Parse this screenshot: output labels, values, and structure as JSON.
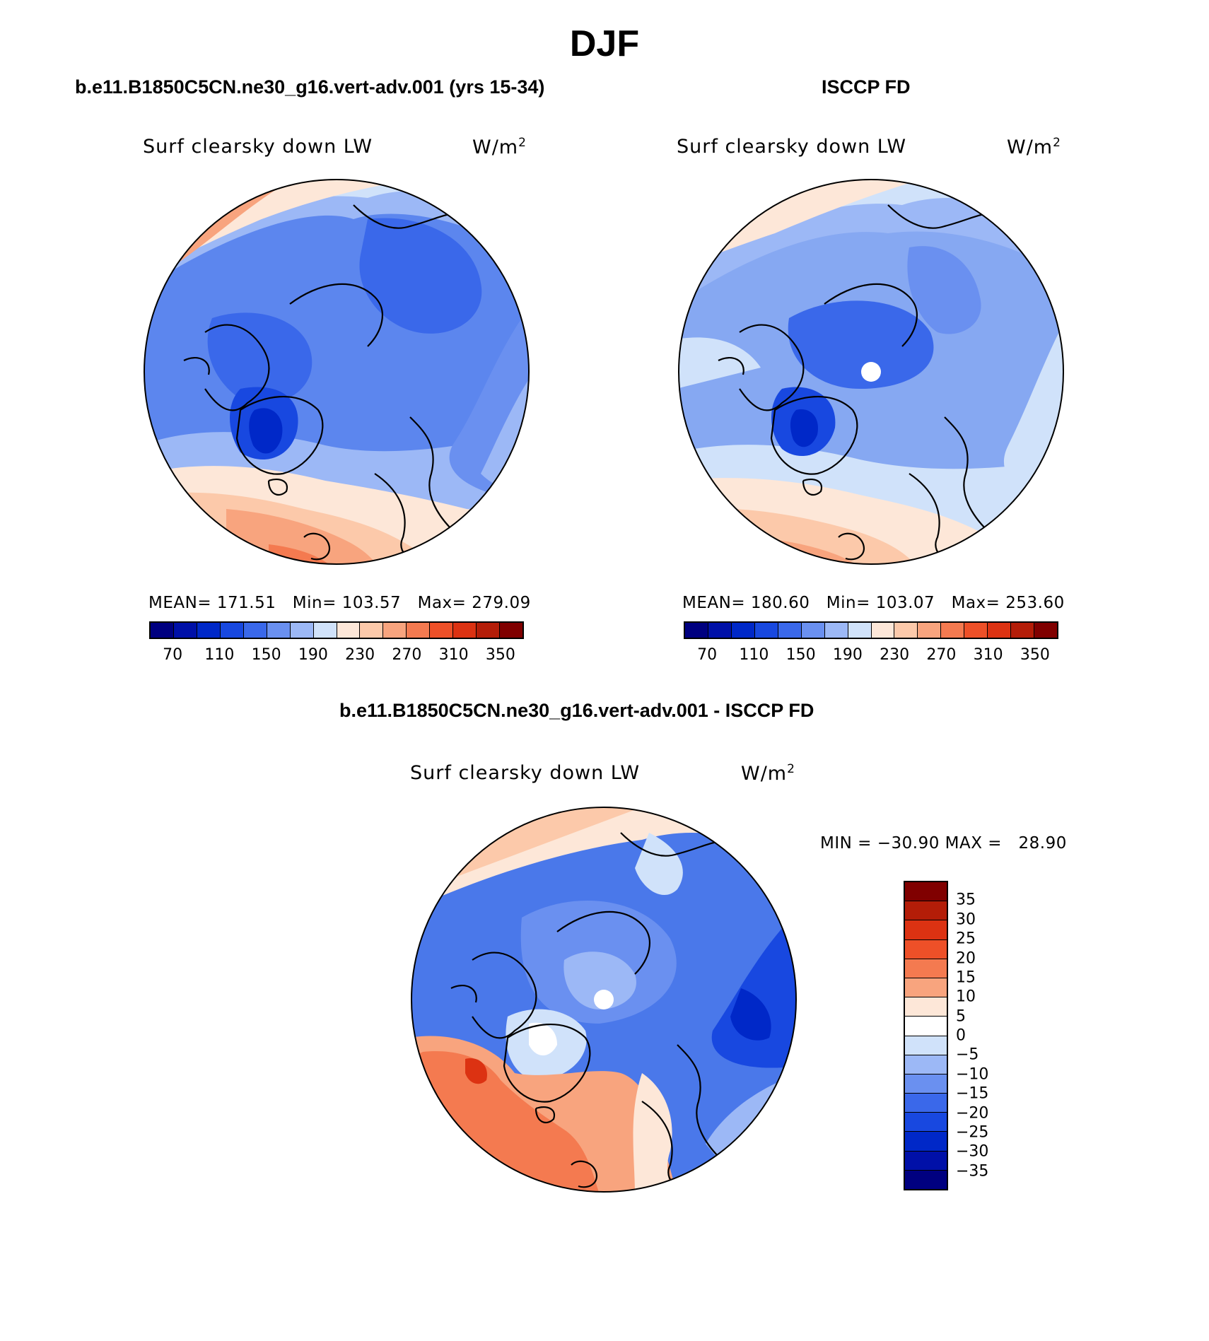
{
  "figure": {
    "title": "DJF"
  },
  "panels": [
    {
      "id": "model",
      "title": "b.e11.B1850C5CN.ne30_g16.vert-adv.001 (yrs 15-34)",
      "variable": "Surf clearsky down LW",
      "units": "W/m",
      "units_exp": "2",
      "stats": "MEAN= 171.51   Min= 103.57   Max= 279.09",
      "mean": 171.51,
      "min": 103.57,
      "max": 279.09
    },
    {
      "id": "obs",
      "title": "ISCCP FD",
      "variable": "Surf clearsky down LW",
      "units": "W/m",
      "units_exp": "2",
      "stats": "MEAN= 180.60   Min= 103.07   Max= 253.60",
      "mean": 180.6,
      "min": 103.07,
      "max": 253.6
    },
    {
      "id": "diff",
      "title": "b.e11.B1850C5CN.ne30_g16.vert-adv.001 - ISCCP FD",
      "variable": "Surf clearsky down LW",
      "units": "W/m",
      "units_exp": "2",
      "stats": "MIN = −30.90 MAX =   28.90",
      "min": -30.9,
      "max": 28.9
    }
  ],
  "colorbar_abs": {
    "colors": [
      "#000080",
      "#0010a8",
      "#0028c8",
      "#1848e0",
      "#3a68ea",
      "#6a90f0",
      "#9cb8f6",
      "#d0e2fa",
      "#fde7d8",
      "#fcc9aa",
      "#f8a47e",
      "#f47a50",
      "#ee5028",
      "#dc3212",
      "#b41d08",
      "#800000"
    ],
    "ticks": [
      "70",
      "110",
      "150",
      "190",
      "230",
      "270",
      "310",
      "350"
    ]
  },
  "colorbar_diff": {
    "colors": [
      "#800000",
      "#b41d08",
      "#dc3212",
      "#ee5028",
      "#f47a50",
      "#f8a47e",
      "#fde7d8",
      "#ffffff",
      "#d0e2fa",
      "#9cb8f6",
      "#6a90f0",
      "#3a68ea",
      "#1848e0",
      "#0028c8",
      "#0010a8",
      "#000080"
    ],
    "ticks": [
      "35",
      "30",
      "25",
      "20",
      "15",
      "10",
      "5",
      "0",
      "−5",
      "−10",
      "−15",
      "−20",
      "−25",
      "−30",
      "−35"
    ]
  },
  "maps": {
    "model": {
      "background": "#5c86ee"
    },
    "obs": {
      "background": "#86a8f2"
    },
    "diff": {
      "background": "#4a78ea"
    }
  }
}
